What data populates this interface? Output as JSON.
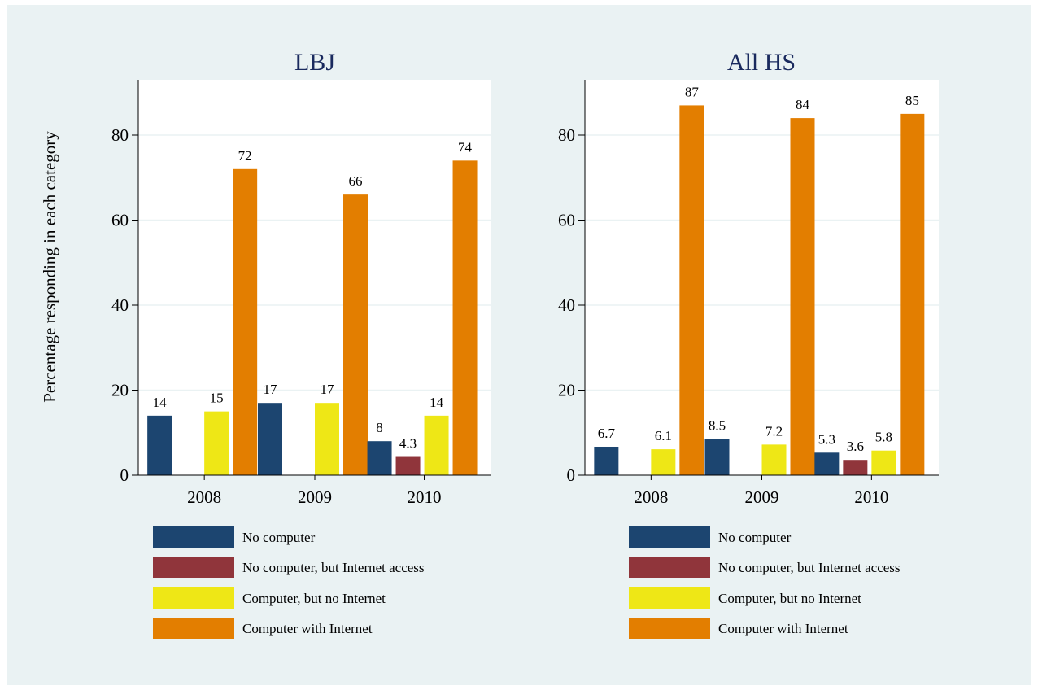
{
  "ylabel": "Percentage responding in each category",
  "colors": {
    "background": "#eaf2f3",
    "plot_background": "#ffffff",
    "title": "#1a2a5e",
    "series": [
      "#1c4570",
      "#90353b",
      "#eee716",
      "#e37e00"
    ]
  },
  "legend_labels": [
    "No computer",
    "No computer, but Internet access",
    "Computer, but no Internet",
    "Computer with Internet"
  ],
  "chart_data": [
    {
      "type": "bar",
      "title": "LBJ",
      "categories": [
        "2008",
        "2009",
        "2010"
      ],
      "series": [
        {
          "name": "No computer",
          "values": [
            14,
            17,
            8
          ],
          "labels": [
            "14",
            "17",
            "8"
          ]
        },
        {
          "name": "No computer, but Internet access",
          "values": [
            null,
            null,
            4.3
          ],
          "labels": [
            "",
            "",
            "4.3"
          ]
        },
        {
          "name": "Computer, but no Internet",
          "values": [
            15,
            17,
            14
          ],
          "labels": [
            "15",
            "17",
            "14"
          ]
        },
        {
          "name": "Computer with Internet",
          "values": [
            72,
            66,
            74
          ],
          "labels": [
            "72",
            "66",
            "74"
          ]
        }
      ],
      "ylabel": "Percentage responding in each category",
      "yticks": [
        0,
        20,
        40,
        60,
        80
      ],
      "ylim": [
        0,
        93
      ],
      "grid": true,
      "legend": "bottom"
    },
    {
      "type": "bar",
      "title": "All HS",
      "categories": [
        "2008",
        "2009",
        "2010"
      ],
      "series": [
        {
          "name": "No computer",
          "values": [
            6.7,
            8.5,
            5.3
          ],
          "labels": [
            "6.7",
            "8.5",
            "5.3"
          ]
        },
        {
          "name": "No computer, but Internet access",
          "values": [
            null,
            null,
            3.6
          ],
          "labels": [
            "",
            "",
            "3.6"
          ]
        },
        {
          "name": "Computer, but no Internet",
          "values": [
            6.1,
            7.2,
            5.8
          ],
          "labels": [
            "6.1",
            "7.2",
            "5.8"
          ]
        },
        {
          "name": "Computer with Internet",
          "values": [
            87,
            84,
            85
          ],
          "labels": [
            "87",
            "84",
            "85"
          ]
        }
      ],
      "yticks": [
        0,
        20,
        40,
        60,
        80
      ],
      "ylim": [
        0,
        93
      ],
      "grid": true,
      "legend": "bottom"
    }
  ]
}
